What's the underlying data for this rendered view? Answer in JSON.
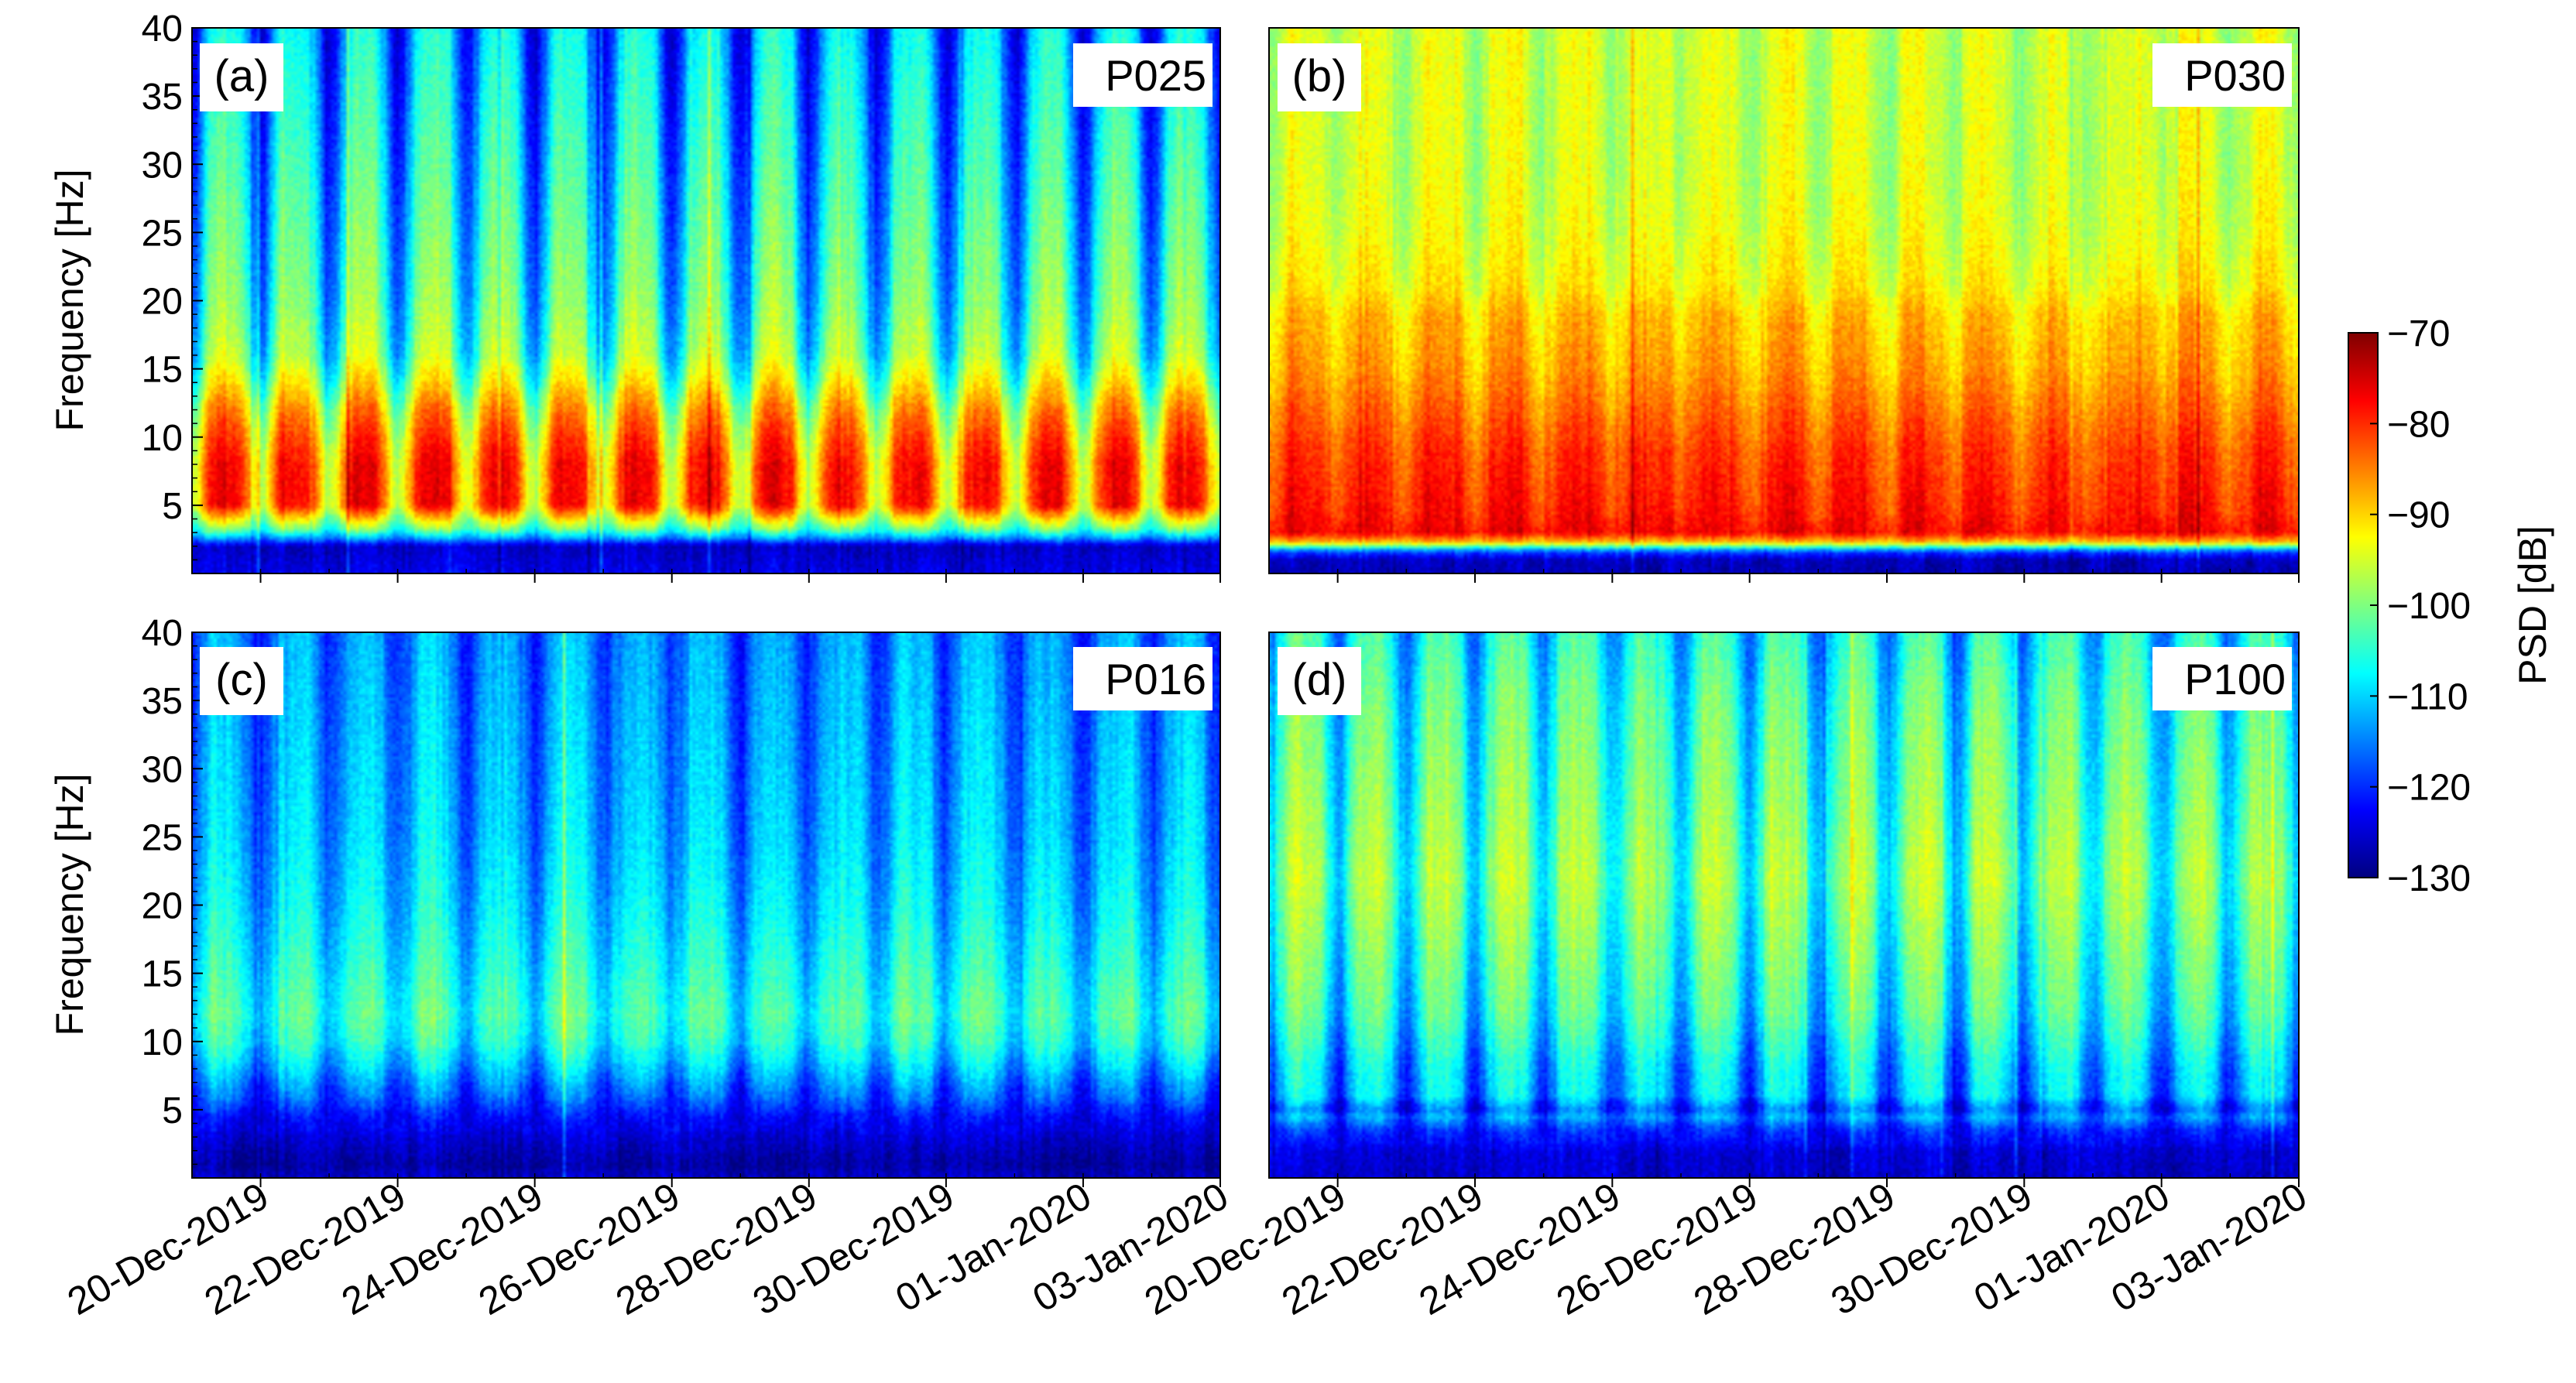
{
  "chart_data": {
    "type": "heatmap",
    "shared": {
      "ylabel": "Frequency [Hz]",
      "ylim": [
        0,
        40
      ],
      "yticks": [
        5,
        10,
        15,
        20,
        25,
        30,
        35,
        40
      ],
      "xlim_days": [
        0,
        15
      ],
      "xtick_days": [
        1,
        3,
        5,
        7,
        9,
        11,
        13,
        15
      ],
      "xtick_labels": [
        "20-Dec-2019",
        "22-Dec-2019",
        "24-Dec-2019",
        "26-Dec-2019",
        "28-Dec-2019",
        "30-Dec-2019",
        "01-Jan-2020",
        "03-Jan-2020"
      ]
    },
    "colorbar": {
      "label": "PSD [dB]",
      "min": -130,
      "max": -70,
      "ticks": [
        -70,
        -80,
        -90,
        -100,
        -110,
        -120,
        -130
      ],
      "tick_labels": [
        "−70",
        "−80",
        "−90",
        "−100",
        "−110",
        "−120",
        "−130"
      ],
      "colormap": [
        "#00007f",
        "#0000ff",
        "#007fff",
        "#00ffff",
        "#7fff7f",
        "#ffff00",
        "#ff7f00",
        "#ff0000",
        "#7f0000"
      ]
    },
    "panels": [
      {
        "id": "a",
        "panel_label": "(a)",
        "station": "P025",
        "profile": [
          [
            0,
            -124
          ],
          [
            1,
            -125
          ],
          [
            2,
            -126
          ],
          [
            2.6,
            -112
          ],
          [
            3.2,
            -100
          ],
          [
            5,
            -77
          ],
          [
            8,
            -77
          ],
          [
            10,
            -80
          ],
          [
            12,
            -84
          ],
          [
            14,
            -90
          ],
          [
            16,
            -95
          ],
          [
            20,
            -98
          ],
          [
            25,
            -100
          ],
          [
            30,
            -102
          ],
          [
            35,
            -104
          ],
          [
            40,
            -106
          ]
        ],
        "night_offset_db": -19,
        "night_freq_min": 3.5
      },
      {
        "id": "b",
        "panel_label": "(b)",
        "station": "P030",
        "profile": [
          [
            0,
            -127
          ],
          [
            1,
            -126
          ],
          [
            1.6,
            -118
          ],
          [
            2.3,
            -88
          ],
          [
            3,
            -76
          ],
          [
            5,
            -77
          ],
          [
            9,
            -79
          ],
          [
            11,
            -81
          ],
          [
            15,
            -85
          ],
          [
            19,
            -87
          ],
          [
            21,
            -90
          ],
          [
            25,
            -92
          ],
          [
            30,
            -93
          ],
          [
            35,
            -93
          ],
          [
            40,
            -93
          ]
        ],
        "night_offset_db": -6,
        "night_freq_min": 3
      },
      {
        "id": "c",
        "panel_label": "(c)",
        "station": "P016",
        "profile": [
          [
            0,
            -126
          ],
          [
            1,
            -128
          ],
          [
            3,
            -125
          ],
          [
            4.5,
            -121
          ],
          [
            6,
            -114
          ],
          [
            8,
            -108
          ],
          [
            10,
            -103
          ],
          [
            12,
            -101
          ],
          [
            15,
            -103
          ],
          [
            20,
            -106
          ],
          [
            25,
            -108
          ],
          [
            30,
            -109
          ],
          [
            35,
            -110
          ],
          [
            40,
            -111
          ]
        ],
        "night_offset_db": -10,
        "night_freq_min": 5
      },
      {
        "id": "d",
        "panel_label": "(d)",
        "station": "P100",
        "profile": [
          [
            0,
            -126
          ],
          [
            2,
            -125
          ],
          [
            3.5,
            -119
          ],
          [
            4.5,
            -111
          ],
          [
            5,
            -114
          ],
          [
            6,
            -107
          ],
          [
            8,
            -106
          ],
          [
            12,
            -101
          ],
          [
            18,
            -98
          ],
          [
            22,
            -96
          ],
          [
            28,
            -98
          ],
          [
            35,
            -100
          ],
          [
            40,
            -103
          ]
        ],
        "night_offset_db": -14,
        "night_freq_min": 4
      }
    ]
  }
}
